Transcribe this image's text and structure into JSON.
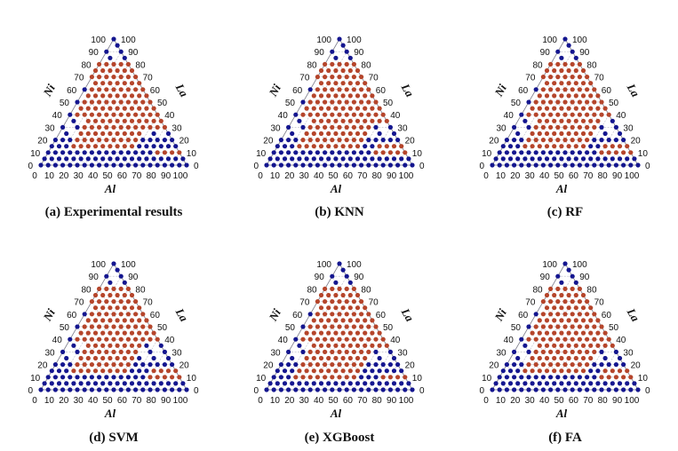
{
  "figure": {
    "colors": {
      "amorphous": "#b5452b",
      "crystalline": "#14168f"
    }
  },
  "chart_data": [
    {
      "type": "scatter",
      "chart_kind": "ternary",
      "caption": "(a) Experimental results",
      "axes": {
        "bottom": "Al",
        "left": "Ni",
        "right": "La"
      },
      "ticks": {
        "bottom": [
          "0",
          "10",
          "20",
          "30",
          "40",
          "50",
          "60",
          "70",
          "80",
          "90",
          "100"
        ],
        "left": [
          "100",
          "90",
          "80",
          "70",
          "60",
          "50",
          "40",
          "30",
          "20",
          "10",
          "0"
        ],
        "right": [
          "0",
          "10",
          "20",
          "30",
          "40",
          "50",
          "60",
          "70",
          "80",
          "90",
          "100"
        ]
      },
      "region": {
        "la_peak_center": 87,
        "la_peak_halfwidth": 3.5,
        "shelf_cut": 57,
        "shelf_start": 72,
        "la_low": 15,
        "la_shelf": 30,
        "crystalline_below_shelf": true
      }
    },
    {
      "type": "scatter",
      "chart_kind": "ternary",
      "caption": "(b) KNN",
      "axes": {
        "bottom": "Al",
        "left": "Ni",
        "right": "La"
      },
      "ticks": {
        "bottom": [
          "0",
          "10",
          "20",
          "30",
          "40",
          "50",
          "60",
          "70",
          "80",
          "90",
          "100"
        ],
        "left": [
          "100",
          "90",
          "80",
          "70",
          "60",
          "50",
          "40",
          "30",
          "20",
          "10",
          "0"
        ],
        "right": [
          "0",
          "10",
          "20",
          "30",
          "40",
          "50",
          "60",
          "70",
          "80",
          "90",
          "100"
        ]
      },
      "region": {
        "la_peak_center": 86,
        "la_peak_halfwidth": 2.5,
        "shelf_cut": 56,
        "shelf_start": 68,
        "la_low": 17,
        "la_shelf": 35,
        "crystalline_below_shelf": true
      }
    },
    {
      "type": "scatter",
      "chart_kind": "ternary",
      "caption": "(c) RF",
      "axes": {
        "bottom": "Al",
        "left": "Ni",
        "right": "La"
      },
      "ticks": {
        "bottom": [
          "0",
          "10",
          "20",
          "30",
          "40",
          "50",
          "60",
          "70",
          "80",
          "90",
          "100"
        ],
        "left": [
          "100",
          "90",
          "80",
          "70",
          "60",
          "50",
          "40",
          "30",
          "20",
          "10",
          "0"
        ],
        "right": [
          "0",
          "10",
          "20",
          "30",
          "40",
          "50",
          "60",
          "70",
          "80",
          "90",
          "100"
        ]
      },
      "region": {
        "la_peak_center": 86,
        "la_peak_halfwidth": 3,
        "shelf_cut": 56,
        "shelf_start": 70,
        "la_low": 17,
        "la_shelf": 36,
        "crystalline_below_shelf": true
      }
    },
    {
      "type": "scatter",
      "chart_kind": "ternary",
      "caption": "(d) SVM",
      "axes": {
        "bottom": "Al",
        "left": "Ni",
        "right": "La"
      },
      "ticks": {
        "bottom": [
          "0",
          "10",
          "20",
          "30",
          "40",
          "50",
          "60",
          "70",
          "80",
          "90",
          "100"
        ],
        "left": [
          "100",
          "90",
          "80",
          "70",
          "60",
          "50",
          "40",
          "30",
          "20",
          "10",
          "0"
        ],
        "right": [
          "0",
          "10",
          "20",
          "30",
          "40",
          "50",
          "60",
          "70",
          "80",
          "90",
          "100"
        ]
      },
      "region": {
        "la_peak_center": 86,
        "la_peak_halfwidth": 2.5,
        "shelf_cut": 55,
        "shelf_start": 70,
        "la_low": 18,
        "la_shelf": 38,
        "crystalline_below_shelf": true
      }
    },
    {
      "type": "scatter",
      "chart_kind": "ternary",
      "caption": "(e) XGBoost",
      "axes": {
        "bottom": "Al",
        "left": "Ni",
        "right": "La"
      },
      "ticks": {
        "bottom": [
          "0",
          "10",
          "20",
          "30",
          "40",
          "50",
          "60",
          "70",
          "80",
          "90",
          "100"
        ],
        "left": [
          "100",
          "90",
          "80",
          "70",
          "60",
          "50",
          "40",
          "30",
          "20",
          "10",
          "0"
        ],
        "right": [
          "0",
          "10",
          "20",
          "30",
          "40",
          "50",
          "60",
          "70",
          "80",
          "90",
          "100"
        ]
      },
      "region": {
        "la_peak_center": 87,
        "la_peak_halfwidth": 3.5,
        "shelf_cut": 57,
        "shelf_start": 72,
        "la_low": 15,
        "la_shelf": 32,
        "crystalline_below_shelf": false
      }
    },
    {
      "type": "scatter",
      "chart_kind": "ternary",
      "caption": "(f) FA",
      "axes": {
        "bottom": "Al",
        "left": "Ni",
        "right": "La"
      },
      "ticks": {
        "bottom": [
          "0",
          "10",
          "20",
          "30",
          "40",
          "50",
          "60",
          "70",
          "80",
          "90",
          "100"
        ],
        "left": [
          "100",
          "90",
          "80",
          "70",
          "60",
          "50",
          "40",
          "30",
          "20",
          "10",
          "0"
        ],
        "right": [
          "0",
          "10",
          "20",
          "30",
          "40",
          "50",
          "60",
          "70",
          "80",
          "90",
          "100"
        ]
      },
      "region": {
        "la_peak_center": 86,
        "la_peak_halfwidth": 3,
        "shelf_cut": 56,
        "shelf_start": 70,
        "la_low": 16,
        "la_shelf": 34,
        "crystalline_below_shelf": true
      }
    }
  ]
}
